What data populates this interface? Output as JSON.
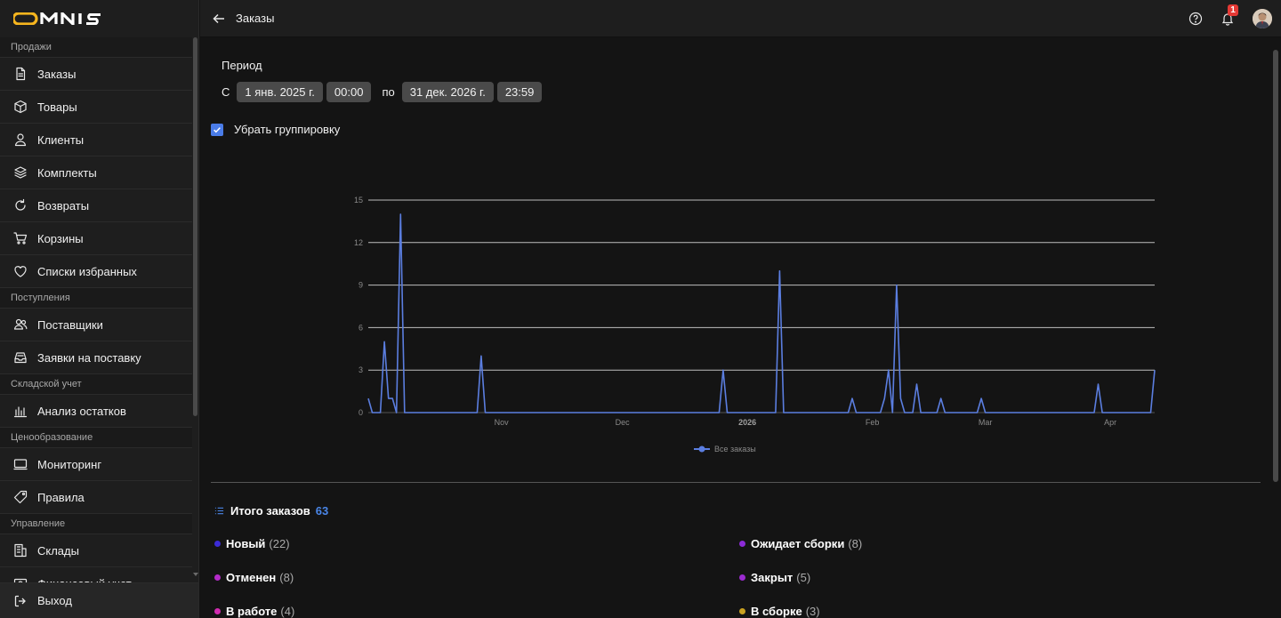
{
  "app": {
    "logo_text": "OMNIS"
  },
  "header": {
    "title": "Заказы",
    "notifications_count": "1"
  },
  "sidebar": {
    "sections": [
      {
        "title": "Продажи",
        "items": [
          {
            "label": "Заказы",
            "icon": "file-icon"
          },
          {
            "label": "Товары",
            "icon": "box-icon"
          },
          {
            "label": "Клиенты",
            "icon": "user-icon"
          },
          {
            "label": "Комплекты",
            "icon": "layers-icon"
          },
          {
            "label": "Возвраты",
            "icon": "refresh-icon"
          },
          {
            "label": "Корзины",
            "icon": "cart-icon"
          },
          {
            "label": "Списки избранных",
            "icon": "heart-icon"
          }
        ]
      },
      {
        "title": "Поступления",
        "items": [
          {
            "label": "Поставщики",
            "icon": "users-icon"
          },
          {
            "label": "Заявки на поставку",
            "icon": "inbox-icon"
          }
        ]
      },
      {
        "title": "Складской учет",
        "items": [
          {
            "label": "Анализ остатков",
            "icon": "bar-chart-icon"
          }
        ]
      },
      {
        "title": "Ценообразование",
        "items": [
          {
            "label": "Мониторинг",
            "icon": "monitor-icon"
          },
          {
            "label": "Правила",
            "icon": "tag-icon"
          }
        ]
      },
      {
        "title": "Управление",
        "items": [
          {
            "label": "Склады",
            "icon": "building-icon"
          },
          {
            "label": "Финансовый учет",
            "icon": "finance-icon"
          }
        ]
      }
    ],
    "logout_label": "Выход"
  },
  "period": {
    "label": "Период",
    "from_label": "С",
    "from_date": "1 янв. 2025 г.",
    "from_time": "00:00",
    "to_label": "по",
    "to_date": "31 дек. 2026 г.",
    "to_time": "23:59"
  },
  "grouping": {
    "label": "Убрать группировку",
    "checked": true
  },
  "chart_data": {
    "type": "line",
    "title": "",
    "xlabel": "",
    "ylabel": "",
    "ylim": [
      0,
      15
    ],
    "yticks": [
      0,
      3,
      6,
      9,
      12,
      15
    ],
    "xticks": [
      {
        "label": "Nov",
        "pos": 33,
        "bold": false
      },
      {
        "label": "Dec",
        "pos": 63,
        "bold": false
      },
      {
        "label": "2026",
        "pos": 94,
        "bold": true
      },
      {
        "label": "Feb",
        "pos": 125,
        "bold": false
      },
      {
        "label": "Mar",
        "pos": 153,
        "bold": false
      },
      {
        "label": "Apr",
        "pos": 184,
        "bold": false
      }
    ],
    "xrange": [
      0,
      195
    ],
    "grid": true,
    "legend_position": "bottom",
    "series": [
      {
        "name": "Все заказы",
        "color": "#5b7ee0",
        "points": [
          [
            0,
            1
          ],
          [
            1,
            0
          ],
          [
            2,
            0
          ],
          [
            3,
            0
          ],
          [
            4,
            5
          ],
          [
            5,
            1
          ],
          [
            6,
            1
          ],
          [
            7,
            0
          ],
          [
            8,
            14
          ],
          [
            9,
            0
          ],
          [
            27,
            0
          ],
          [
            28,
            4
          ],
          [
            29,
            0
          ],
          [
            87,
            0
          ],
          [
            88,
            3
          ],
          [
            89,
            0
          ],
          [
            101,
            0
          ],
          [
            102,
            10
          ],
          [
            103,
            0
          ],
          [
            119,
            0
          ],
          [
            120,
            1
          ],
          [
            121,
            0
          ],
          [
            127,
            0
          ],
          [
            128,
            1
          ],
          [
            129,
            3
          ],
          [
            130,
            0
          ],
          [
            131,
            9
          ],
          [
            132,
            1
          ],
          [
            133,
            0
          ],
          [
            135,
            0
          ],
          [
            136,
            2
          ],
          [
            137,
            0
          ],
          [
            141,
            0
          ],
          [
            142,
            1
          ],
          [
            143,
            0
          ],
          [
            151,
            0
          ],
          [
            152,
            1
          ],
          [
            153,
            0
          ],
          [
            180,
            0
          ],
          [
            181,
            2
          ],
          [
            182,
            0
          ],
          [
            194,
            0
          ],
          [
            195,
            3
          ]
        ]
      }
    ]
  },
  "totals": {
    "label": "Итого заказов",
    "value": "63"
  },
  "statuses": [
    {
      "name": "Новый",
      "count": "(22)",
      "color": "#3b2bd6"
    },
    {
      "name": "Ожидает сборки",
      "count": "(8)",
      "color": "#8c2bd6"
    },
    {
      "name": "Отменен",
      "count": "(8)",
      "color": "#b52bc9"
    },
    {
      "name": "Закрыт",
      "count": "(5)",
      "color": "#9b2bd0"
    },
    {
      "name": "В работе",
      "count": "(4)",
      "color": "#d02bb0"
    },
    {
      "name": "В сборке",
      "count": "(3)",
      "color": "#c9a020"
    }
  ]
}
